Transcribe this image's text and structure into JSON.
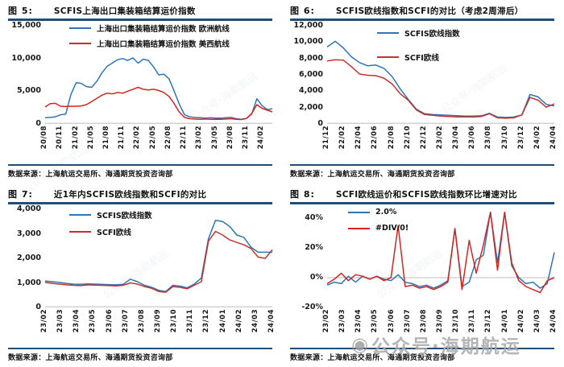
{
  "watermark": {
    "icon": "◉",
    "text": "公众号·海期航运"
  },
  "colors": {
    "rule": "#1f4e79",
    "blue": "#2e75b6",
    "red_bright": "#d62420",
    "red_dark": "#c0342c",
    "baseline": "#c9c9c9"
  },
  "chart_data": [
    {
      "type": "line",
      "fig_label": "图 5:",
      "title": "SCFIS上海出口集装箱结算运价指数",
      "source": "数据来源：上海航运交易所、海通期货投资咨询部",
      "ylim": [
        0,
        15000
      ],
      "grid": false,
      "legend_position": "top-left",
      "yticks": [
        {
          "value": 15000,
          "label": "15,000"
        },
        {
          "value": 10000,
          "label": "10,000"
        },
        {
          "value": 5000,
          "label": "5,000"
        },
        {
          "value": 0,
          "label": "0"
        }
      ],
      "xlabels": [
        "20/08",
        "20/11",
        "21/02",
        "21/05",
        "21/08",
        "21/11",
        "22/02",
        "22/05",
        "22/08",
        "22/11",
        "23/02",
        "23/05",
        "23/08",
        "23/11",
        "24/02"
      ],
      "x_span_months": 44,
      "x_label_step": 3,
      "series": [
        {
          "name": "上海出口集装箱结算运价指数 欧洲航线",
          "color": "#2e75b6",
          "values": [
            950,
            1000,
            1100,
            1400,
            1500,
            4500,
            6300,
            6200,
            5700,
            5600,
            6500,
            7800,
            8800,
            9300,
            9800,
            10000,
            9700,
            10100,
            9300,
            9900,
            9700,
            8700,
            7500,
            7600,
            6900,
            5000,
            3000,
            1400,
            1100,
            1000,
            950,
            900,
            950,
            900,
            900,
            950,
            1000,
            800,
            700,
            850,
            1500,
            3850,
            2800,
            2200,
            2300
          ]
        },
        {
          "name": "上海出口集装箱结算运价指数 美西航线",
          "color": "#d62420",
          "values": [
            2600,
            3100,
            3150,
            2700,
            2650,
            2700,
            2700,
            2750,
            2950,
            3400,
            3900,
            4400,
            4700,
            4600,
            4800,
            4700,
            5000,
            5300,
            5600,
            5300,
            5200,
            5300,
            5100,
            4800,
            4200,
            3100,
            1800,
            1000,
            800,
            750,
            700,
            750,
            700,
            720,
            700,
            750,
            800,
            700,
            680,
            850,
            1600,
            2950,
            2400,
            2100,
            1850
          ]
        }
      ]
    },
    {
      "type": "line",
      "fig_label": "图 6:",
      "title": "SCFIS欧线指数和SCFI的对比（考虑2周滞后）",
      "source": "数据来源：上海航运交易所、海通期货投资咨询部",
      "ylim": [
        0,
        12000
      ],
      "grid": false,
      "legend_position": "top-center",
      "yticks": [
        {
          "value": 12000,
          "label": "12,000"
        },
        {
          "value": 10000,
          "label": "10,000"
        },
        {
          "value": 8000,
          "label": "8,000"
        },
        {
          "value": 6000,
          "label": "6,000"
        },
        {
          "value": 4000,
          "label": "4,000"
        },
        {
          "value": 2000,
          "label": "2,000"
        },
        {
          "value": 0,
          "label": "0"
        }
      ],
      "xlabels": [
        "21/12",
        "22/02",
        "22/04",
        "22/06",
        "22/08",
        "22/10",
        "22/12",
        "23/02",
        "23/04",
        "23/06",
        "23/08",
        "23/10",
        "23/12",
        "24/02",
        "24/04"
      ],
      "x_span_months": 28,
      "x_label_step": 2,
      "series": [
        {
          "name": "SCFIS欧线指数",
          "color": "#2e75b6",
          "values": [
            9400,
            10100,
            9300,
            8200,
            7500,
            7100,
            7200,
            6800,
            5800,
            4300,
            3000,
            1800,
            1250,
            1150,
            1100,
            1050,
            1000,
            950,
            950,
            1000,
            1300,
            850,
            800,
            850,
            1100,
            3600,
            3300,
            2400,
            2200
          ]
        },
        {
          "name": "SCFI欧线",
          "color": "#c0342c",
          "values": [
            7700,
            7850,
            7800,
            7000,
            6100,
            5950,
            5900,
            5600,
            4900,
            3700,
            2900,
            1700,
            1150,
            1050,
            950,
            900,
            870,
            880,
            850,
            900,
            1250,
            750,
            700,
            750,
            1100,
            3250,
            2900,
            2050,
            2450
          ]
        }
      ]
    },
    {
      "type": "line",
      "fig_label": "图 7:",
      "title": "近1年内SCFIS欧线指数和SCFI的对比",
      "source": "数据来源：上海航运交易所、海通期货投资咨询部",
      "ylim": [
        0,
        4000
      ],
      "grid": false,
      "legend_position": "top-left",
      "yticks": [
        {
          "value": 4000,
          "label": "4,000"
        },
        {
          "value": 3000,
          "label": "3,000"
        },
        {
          "value": 2000,
          "label": "2,000"
        },
        {
          "value": 1000,
          "label": "1,000"
        },
        {
          "value": 0,
          "label": "0"
        }
      ],
      "xlabels": [
        "23/02",
        "23/03",
        "23/04",
        "23/05",
        "23/06",
        "23/07",
        "23/08",
        "23/09",
        "23/10",
        "23/11",
        "23/12",
        "24/01",
        "24/02",
        "24/03",
        "24/04"
      ],
      "x_span_months": 14,
      "x_label_step": 1,
      "series": [
        {
          "name": "SCFIS欧线指数",
          "color": "#2e75b6",
          "values": [
            1080,
            1050,
            1020,
            980,
            950,
            940,
            960,
            950,
            940,
            930,
            920,
            940,
            1150,
            1050,
            900,
            820,
            700,
            650,
            900,
            870,
            800,
            950,
            1200,
            2800,
            3550,
            3500,
            3300,
            2950,
            2850,
            2450,
            2250,
            2250,
            2250
          ]
        },
        {
          "name": "SCFI欧线",
          "color": "#c0342c",
          "values": [
            1020,
            980,
            950,
            920,
            900,
            890,
            920,
            910,
            900,
            890,
            880,
            900,
            1000,
            950,
            850,
            780,
            650,
            620,
            850,
            820,
            760,
            900,
            1050,
            2700,
            3100,
            2950,
            2750,
            2650,
            2550,
            2400,
            2050,
            2000,
            2350
          ]
        }
      ]
    },
    {
      "type": "line",
      "fig_label": "图 8:",
      "title": "SCFI欧线运价和SCFIS欧线指数环比增速对比",
      "source": "数据来源：上海航运交易所、海通期货投资咨询部",
      "ylim": [
        -20,
        46
      ],
      "grid": false,
      "legend_position": "top-left",
      "yticks": [
        {
          "value": 40,
          "label": "40%"
        },
        {
          "value": 20,
          "label": "20%"
        },
        {
          "value": 0,
          "label": "0%"
        },
        {
          "value": -20,
          "label": "-20%"
        }
      ],
      "xlabels": [
        "23/02",
        "23/03",
        "23/04",
        "23/05",
        "23/06",
        "23/07",
        "23/08",
        "23/09",
        "23/10",
        "23/11",
        "23/12",
        "24/01",
        "24/02",
        "24/03",
        "24/04"
      ],
      "x_span_months": 14,
      "x_label_step": 1,
      "series": [
        {
          "name": "2.0%",
          "color": "#2e75b6",
          "values": [
            -5,
            -3,
            -4,
            1,
            -3,
            1,
            -1,
            1,
            -1,
            -2,
            2,
            -3,
            -4,
            -6,
            -5,
            -7,
            -5,
            -2,
            33,
            -6,
            -3,
            12,
            15,
            44,
            10,
            44,
            8,
            0,
            -4,
            -3,
            -7,
            -4,
            17
          ]
        },
        {
          "name": "#DIV/0!",
          "color": "#d62420",
          "values": [
            -4,
            -1,
            3,
            -2,
            2,
            1,
            -1,
            1,
            -2,
            0,
            35,
            -6,
            -5,
            -7,
            -6,
            -8,
            -6,
            -3,
            33,
            -8,
            25,
            3,
            22,
            44,
            5,
            44,
            10,
            -2,
            -6,
            -8,
            -10,
            -2,
            0
          ]
        }
      ]
    }
  ]
}
